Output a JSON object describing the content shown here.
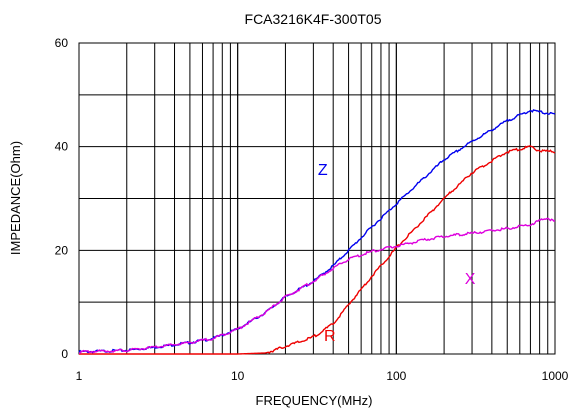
{
  "chart_data": {
    "type": "line",
    "title": "FCA3216K4F-300T05",
    "xlabel": "FREQUENCY(MHz)",
    "ylabel": "IMPEDANCE(Ohm)",
    "x_scale": "log",
    "xlim": [
      1,
      1000
    ],
    "ylim": [
      0,
      60
    ],
    "x_ticks": [
      1,
      10,
      100,
      1000
    ],
    "x_tick_labels": [
      "1",
      "10",
      "100",
      "1000"
    ],
    "y_ticks": [
      0,
      20,
      40,
      60
    ],
    "y_tick_labels": [
      "0",
      "20",
      "40",
      "60"
    ],
    "y_minor_grid": [
      10,
      30,
      50
    ],
    "grid": true,
    "series": [
      {
        "name": "Z",
        "color": "#0000ee",
        "x": [
          1,
          2,
          3,
          5,
          7,
          10,
          15,
          20,
          30,
          40,
          50,
          70,
          100,
          150,
          200,
          300,
          500,
          700,
          1000
        ],
        "y": [
          0.4,
          0.7,
          1.3,
          2.2,
          3.0,
          4.8,
          8.0,
          11.0,
          14.0,
          17.0,
          20.0,
          24.5,
          29.0,
          34.0,
          37.5,
          41.0,
          45.0,
          47.0,
          46.2
        ]
      },
      {
        "name": "R",
        "color": "#ee0000",
        "x": [
          1,
          5,
          10,
          15,
          17,
          20,
          25,
          30,
          40,
          50,
          70,
          100,
          150,
          200,
          300,
          500,
          700,
          800,
          1000
        ],
        "y": [
          0,
          0,
          0,
          0.2,
          0.7,
          1.5,
          2.4,
          3.3,
          5.8,
          9.5,
          15.0,
          20.5,
          26.0,
          30.0,
          35.0,
          39.0,
          40.0,
          39.2,
          39.0
        ]
      },
      {
        "name": "X",
        "color": "#dd00dd",
        "x": [
          1,
          2,
          3,
          5,
          7,
          10,
          15,
          20,
          30,
          40,
          50,
          70,
          100,
          150,
          200,
          300,
          500,
          700,
          900,
          1000
        ],
        "y": [
          0.4,
          0.7,
          1.3,
          2.2,
          3.0,
          4.8,
          8.0,
          11.0,
          14.0,
          16.5,
          18.3,
          19.8,
          20.8,
          22.0,
          22.7,
          23.3,
          24.2,
          25.0,
          26.3,
          25.5
        ]
      }
    ],
    "series_labels": [
      {
        "text": "Z",
        "x": 32,
        "y": 34.5
      },
      {
        "text": "R",
        "x": 35,
        "y": 2.5
      },
      {
        "text": "X",
        "x": 270,
        "y": 13.5
      }
    ]
  }
}
